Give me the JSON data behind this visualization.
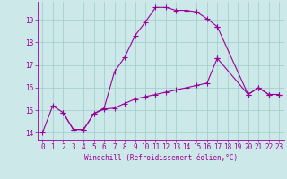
{
  "xlabel": "Windchill (Refroidissement éolien,°C)",
  "bg_color": "#cce8e8",
  "line_color": "#990099",
  "grid_color": "#99cccc",
  "xmin": -0.5,
  "xmax": 23.5,
  "ymin": 13.7,
  "ymax": 19.8,
  "xticks": [
    0,
    1,
    2,
    3,
    4,
    5,
    6,
    7,
    8,
    9,
    10,
    11,
    12,
    13,
    14,
    15,
    16,
    17,
    18,
    19,
    20,
    21,
    22,
    23
  ],
  "yticks": [
    14,
    15,
    16,
    17,
    18,
    19
  ],
  "line1_x": [
    0,
    1,
    2,
    3,
    4,
    5,
    6,
    7,
    8,
    9,
    10,
    11,
    12,
    13,
    14,
    15,
    16,
    17
  ],
  "line1_y": [
    14.0,
    15.2,
    14.9,
    14.15,
    14.15,
    14.85,
    15.1,
    16.7,
    17.35,
    18.3,
    18.9,
    19.55,
    19.55,
    19.42,
    19.42,
    19.35,
    19.05,
    18.7
  ],
  "line2_x": [
    17,
    20,
    21,
    22,
    23
  ],
  "line2_y": [
    18.7,
    15.7,
    16.0,
    15.7,
    15.7
  ],
  "line3_x": [
    2,
    3,
    4,
    5,
    6,
    7,
    8,
    9,
    10,
    11,
    12,
    13,
    14,
    15,
    16,
    17
  ],
  "line3_y": [
    14.9,
    14.15,
    14.15,
    14.85,
    15.05,
    15.1,
    15.3,
    15.5,
    15.6,
    15.7,
    15.8,
    15.9,
    16.0,
    16.1,
    16.2,
    17.3
  ],
  "line4_x": [
    17,
    20,
    21,
    22,
    23
  ],
  "line4_y": [
    17.3,
    15.7,
    16.0,
    15.7,
    15.7
  ],
  "tick_fontsize": 5.5,
  "label_fontsize": 5.5
}
